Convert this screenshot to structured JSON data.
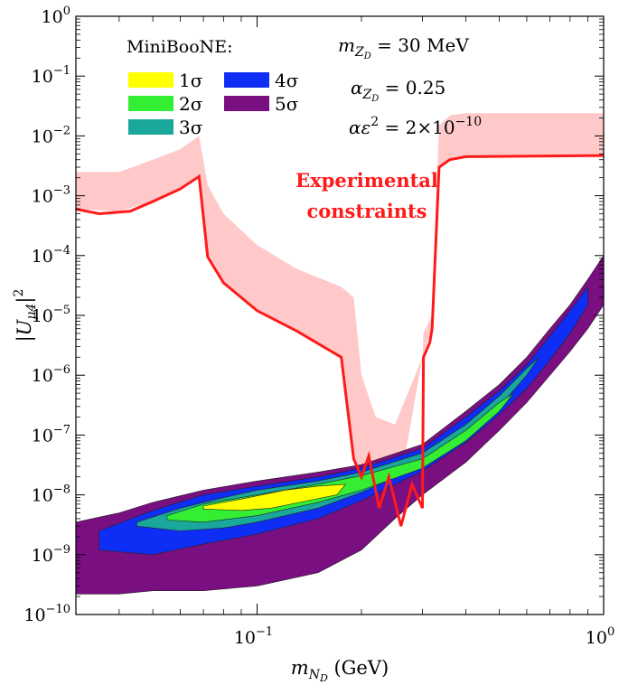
{
  "chart_data": {
    "type": "area",
    "xlabel": "m_{N_D} (GeV)",
    "ylabel": "|U_{μ4}|^2",
    "xscale": "log",
    "yscale": "log",
    "xlim": [
      0.03,
      1.0
    ],
    "ylim": [
      1e-10,
      1.0
    ],
    "x_ticks": [
      {
        "value": 0.1,
        "base": "10",
        "exp": "−1"
      },
      {
        "value": 1.0,
        "base": "10",
        "exp": "0"
      }
    ],
    "y_ticks": [
      {
        "value": 1e-10,
        "base": "10",
        "exp": "−10"
      },
      {
        "value": 1e-09,
        "base": "10",
        "exp": "−9"
      },
      {
        "value": 1e-08,
        "base": "10",
        "exp": "−8"
      },
      {
        "value": 1e-07,
        "base": "10",
        "exp": "−7"
      },
      {
        "value": 1e-06,
        "base": "10",
        "exp": "−6"
      },
      {
        "value": 1e-05,
        "base": "10",
        "exp": "−5"
      },
      {
        "value": 0.0001,
        "base": "10",
        "exp": "−4"
      },
      {
        "value": 0.001,
        "base": "10",
        "exp": "−3"
      },
      {
        "value": 0.01,
        "base": "10",
        "exp": "−2"
      },
      {
        "value": 0.1,
        "base": "10",
        "exp": "−1"
      },
      {
        "value": 1,
        "base": "10",
        "exp": "0"
      }
    ],
    "legend": {
      "title": "MiniBooNE:",
      "placement": "top-left",
      "entries": [
        {
          "label": "1σ",
          "color": "#ffff00"
        },
        {
          "label": "2σ",
          "color": "#33ee33"
        },
        {
          "label": "3σ",
          "color": "#1aa89c"
        },
        {
          "label": "4σ",
          "color": "#0f2ef5"
        },
        {
          "label": "5σ",
          "color": "#7a0f82"
        }
      ]
    },
    "annotations": [
      {
        "text": "m_{Z_D} = 30 MeV"
      },
      {
        "text": "α_{Z_D} = 0.25"
      },
      {
        "text": "αε^2 = 2×10^{−10}"
      },
      {
        "text": "Experimental constraints",
        "color": "#ff1a1a"
      }
    ],
    "series": [
      {
        "name": "5σ",
        "color": "#7a0f82",
        "type": "region",
        "x": [
          0.03,
          0.04,
          0.05,
          0.07,
          0.1,
          0.15,
          0.2,
          0.3,
          0.4,
          0.5,
          0.6,
          0.7,
          0.8,
          0.9,
          1.0,
          1.0,
          0.9,
          0.8,
          0.7,
          0.6,
          0.5,
          0.4,
          0.3,
          0.25,
          0.2,
          0.15,
          0.1,
          0.07,
          0.05,
          0.04,
          0.03
        ],
        "y": [
          3.5e-09,
          5e-09,
          7.5e-09,
          1.2e-08,
          1.7e-08,
          2.4e-08,
          3.2e-08,
          7e-08,
          2.5e-07,
          7e-07,
          2e-06,
          6e-06,
          1.5e-05,
          4e-05,
          0.0001,
          1.5e-05,
          6e-06,
          2.5e-06,
          1e-06,
          3.5e-07,
          1.2e-07,
          3.5e-08,
          1e-08,
          4e-09,
          1.2e-09,
          5e-10,
          3e-10,
          2.5e-10,
          2.5e-10,
          2.2e-10,
          2.2e-10
        ]
      },
      {
        "name": "4σ",
        "color": "#0f2ef5",
        "type": "region",
        "x": [
          0.035,
          0.05,
          0.07,
          0.1,
          0.15,
          0.2,
          0.3,
          0.4,
          0.5,
          0.6,
          0.7,
          0.8,
          0.9,
          0.9,
          0.8,
          0.7,
          0.6,
          0.5,
          0.4,
          0.3,
          0.2,
          0.15,
          0.1,
          0.07,
          0.05,
          0.035
        ],
        "y": [
          2.5e-09,
          5.5e-09,
          1e-08,
          1.4e-08,
          2e-08,
          2.8e-08,
          6e-08,
          2e-07,
          5.5e-07,
          1.5e-06,
          4.5e-06,
          1.2e-05,
          3e-05,
          1.5e-05,
          5e-06,
          1.8e-06,
          6e-07,
          2.2e-07,
          7.5e-08,
          2.5e-08,
          8e-09,
          4e-09,
          2.2e-09,
          1.5e-09,
          1e-09,
          1.2e-09
        ]
      },
      {
        "name": "3σ",
        "color": "#1aa89c",
        "type": "region",
        "x": [
          0.045,
          0.06,
          0.08,
          0.1,
          0.15,
          0.2,
          0.3,
          0.4,
          0.5,
          0.6,
          0.65,
          0.6,
          0.5,
          0.4,
          0.3,
          0.2,
          0.15,
          0.1,
          0.08,
          0.06,
          0.045
        ],
        "y": [
          3.5e-09,
          6e-09,
          9e-09,
          1.2e-08,
          1.7e-08,
          2.4e-08,
          5e-08,
          1.5e-07,
          4.5e-07,
          1.3e-06,
          2e-06,
          1e-06,
          3e-07,
          1e-07,
          3.2e-08,
          1.1e-08,
          6e-09,
          3.5e-09,
          2.8e-09,
          2.5e-09,
          3e-09
        ]
      },
      {
        "name": "2σ",
        "color": "#33ee33",
        "type": "region",
        "x": [
          0.055,
          0.07,
          0.1,
          0.15,
          0.2,
          0.3,
          0.4,
          0.5,
          0.55,
          0.5,
          0.4,
          0.3,
          0.2,
          0.15,
          0.1,
          0.07,
          0.055
        ],
        "y": [
          4.5e-09,
          7e-09,
          1e-08,
          1.5e-08,
          2.1e-08,
          4e-08,
          1.2e-07,
          3.5e-07,
          5e-07,
          2.5e-07,
          8e-08,
          2.8e-08,
          1.2e-08,
          7.5e-09,
          4.5e-09,
          3.5e-09,
          3.8e-09
        ]
      },
      {
        "name": "1σ",
        "color": "#ffff00",
        "type": "region",
        "x": [
          0.07,
          0.09,
          0.12,
          0.15,
          0.18,
          0.17,
          0.14,
          0.11,
          0.09,
          0.07
        ],
        "y": [
          6.5e-09,
          8.5e-09,
          1.2e-08,
          1.4e-08,
          1.5e-08,
          1e-08,
          8e-09,
          6e-09,
          5.5e-09,
          5.8e-09
        ]
      },
      {
        "name": "Experimental constraints",
        "color": "#ff1a1a",
        "type": "line",
        "x": [
          0.03,
          0.035,
          0.043,
          0.05,
          0.06,
          0.068,
          0.072,
          0.08,
          0.1,
          0.13,
          0.175,
          0.19,
          0.2,
          0.21,
          0.225,
          0.24,
          0.26,
          0.28,
          0.3,
          0.302,
          0.315,
          0.32,
          0.335,
          0.36,
          0.4,
          1.0
        ],
        "y": [
          0.0006,
          0.0005,
          0.00055,
          0.0008,
          0.0013,
          0.0021,
          9.5e-05,
          3.5e-05,
          1.2e-05,
          5.5e-06,
          2e-06,
          4e-08,
          2e-08,
          4.5e-08,
          6e-09,
          2e-08,
          3e-09,
          1.5e-08,
          6e-09,
          2e-06,
          3.5e-06,
          6e-06,
          0.003,
          0.004,
          0.0045,
          0.0047
        ]
      },
      {
        "name": "Experimental constraints band",
        "color": "#ffc9c9",
        "type": "band",
        "x": [
          0.03,
          0.04,
          0.05,
          0.06,
          0.068,
          0.072,
          0.08,
          0.1,
          0.13,
          0.175,
          0.19,
          0.2,
          0.22,
          0.25,
          0.3,
          0.302,
          0.32,
          0.335,
          0.36,
          0.4,
          1.0,
          1.0,
          0.4,
          0.36,
          0.335,
          0.32,
          0.3,
          0.25,
          0.22,
          0.2,
          0.19,
          0.175,
          0.13,
          0.1,
          0.08,
          0.072,
          0.068,
          0.06,
          0.05,
          0.04,
          0.03
        ],
        "y": [
          0.0025,
          0.0025,
          0.004,
          0.006,
          0.01,
          0.0015,
          0.0005,
          0.00015,
          6e-05,
          3e-05,
          2e-05,
          1e-06,
          2e-07,
          1.5e-07,
          2e-06,
          5e-06,
          1e-05,
          0.015,
          0.022,
          0.024,
          0.024,
          0.0047,
          0.0045,
          0.004,
          0.003,
          6e-06,
          2e-06,
          5e-09,
          1e-08,
          2e-08,
          4e-08,
          2e-06,
          5.5e-06,
          1.2e-05,
          3.5e-05,
          9.5e-05,
          0.0021,
          0.0013,
          0.0008,
          0.00055,
          0.0006
        ]
      }
    ]
  }
}
